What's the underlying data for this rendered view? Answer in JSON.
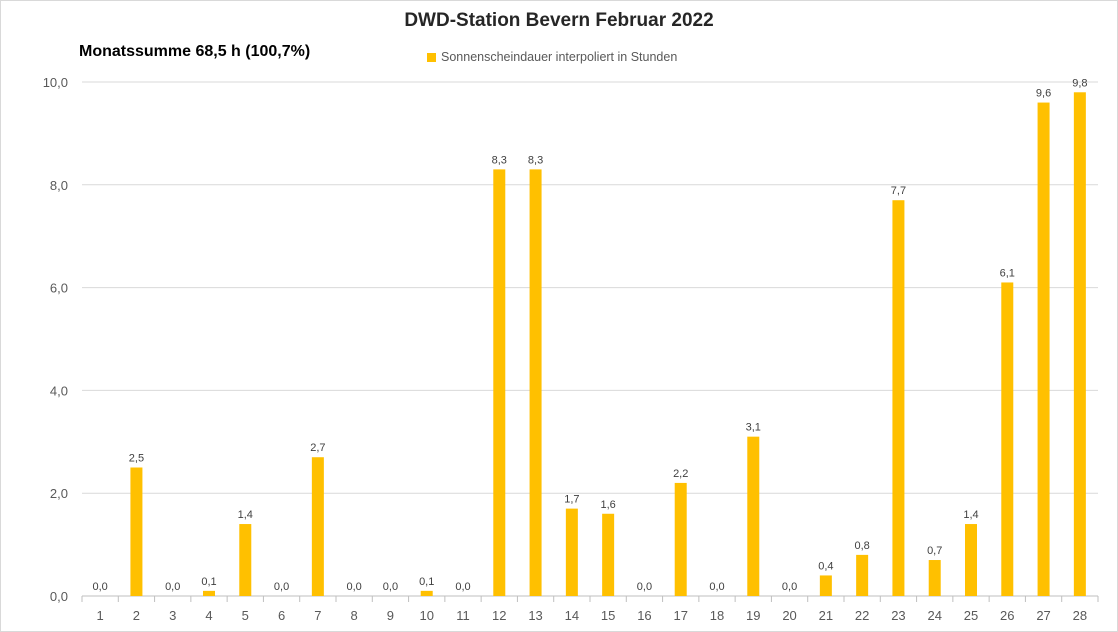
{
  "chart_data": {
    "type": "bar",
    "title": "DWD-Station  Bevern Februar 2022",
    "subtitle": "Monatssumme 68,5 h (100,7%)",
    "series": [
      {
        "name": "Sonnenscheindauer interpoliert in Stunden",
        "values": [
          0.0,
          2.5,
          0.0,
          0.1,
          1.4,
          0.0,
          2.7,
          0.0,
          0.0,
          0.1,
          0.0,
          8.3,
          8.3,
          1.7,
          1.6,
          0.0,
          2.2,
          0.0,
          3.1,
          0.0,
          0.4,
          0.8,
          7.7,
          0.7,
          1.4,
          6.1,
          9.6,
          9.8
        ],
        "labels": [
          "0,0",
          "2,5",
          "0,0",
          "0,1",
          "1,4",
          "0,0",
          "2,7",
          "0,0",
          "0,0",
          "0,1",
          "0,0",
          "8,3",
          "8,3",
          "1,7",
          "1,6",
          "0,0",
          "2,2",
          "0,0",
          "3,1",
          "0,0",
          "0,4",
          "0,8",
          "7,7",
          "0,7",
          "1,4",
          "6,1",
          "9,6",
          "9,8"
        ]
      }
    ],
    "categories": [
      "1",
      "2",
      "3",
      "4",
      "5",
      "6",
      "7",
      "8",
      "9",
      "10",
      "11",
      "12",
      "13",
      "14",
      "15",
      "16",
      "17",
      "18",
      "19",
      "20",
      "21",
      "22",
      "23",
      "24",
      "25",
      "26",
      "27",
      "28"
    ],
    "ylim": [
      0,
      10
    ],
    "yticks": [
      0,
      2,
      4,
      6,
      8,
      10
    ],
    "ytick_labels": [
      "0,0",
      "2,0",
      "4,0",
      "6,0",
      "8,0",
      "10,0"
    ],
    "xlabel": "",
    "ylabel": "",
    "grid": true,
    "legend_position": "top-center",
    "colors": {
      "bar": "#FFC000",
      "grid": "#d9d9d9",
      "axis": "#bfbfbf"
    }
  }
}
